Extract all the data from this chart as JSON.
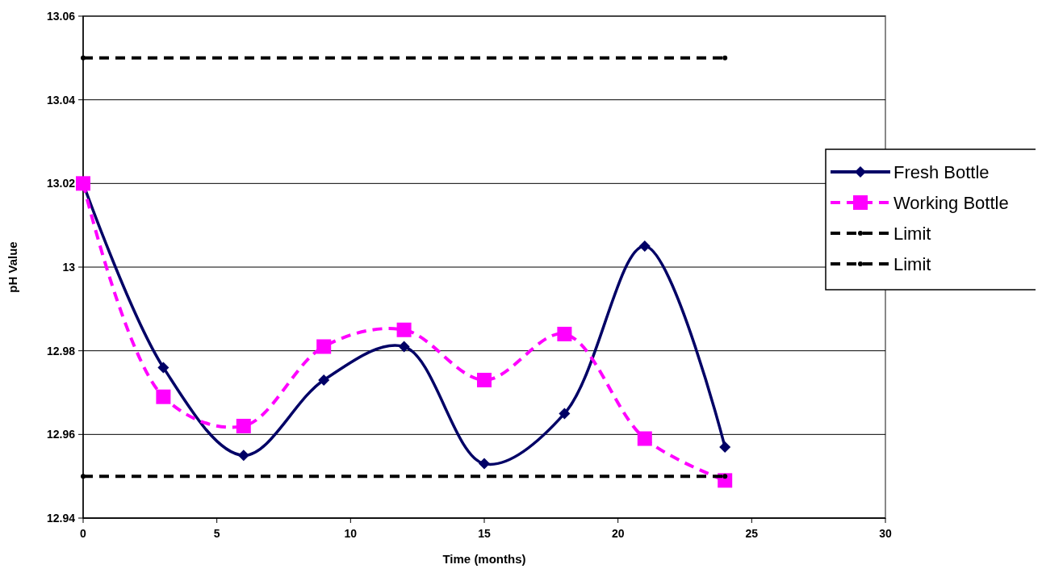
{
  "chart_data": {
    "type": "line",
    "xlabel": "Time (months)",
    "ylabel": "pH Value",
    "x": [
      0,
      3,
      6,
      9,
      12,
      15,
      18,
      21,
      24
    ],
    "series": [
      {
        "name": "Fresh Bottle",
        "color": "#000066",
        "marker": "diamond",
        "line_style": "solid",
        "values": [
          13.02,
          12.976,
          12.955,
          12.973,
          12.981,
          12.953,
          12.965,
          13.005,
          12.957
        ]
      },
      {
        "name": "Working Bottle",
        "color": "#ff00ff",
        "marker": "square",
        "line_style": "dashed",
        "values": [
          13.02,
          12.969,
          12.962,
          12.981,
          12.985,
          12.973,
          12.984,
          12.959,
          12.949
        ]
      },
      {
        "name": "Limit",
        "color": "#000000",
        "marker": "circle",
        "line_style": "dashed",
        "values": [
          12.95,
          null,
          null,
          null,
          null,
          null,
          null,
          null,
          12.95
        ]
      },
      {
        "name": "Limit",
        "color": "#000000",
        "marker": "circle",
        "line_style": "dashed",
        "values": [
          13.05,
          null,
          null,
          null,
          null,
          null,
          null,
          null,
          13.05
        ]
      }
    ],
    "xlim": [
      0,
      30
    ],
    "xticks": [
      0,
      5,
      10,
      15,
      20,
      25,
      30
    ],
    "ylim": [
      12.94,
      13.06
    ],
    "yticks": [
      12.94,
      12.96,
      12.98,
      13,
      13.02,
      13.04,
      13.06
    ],
    "grid": "y",
    "legend": "right"
  }
}
